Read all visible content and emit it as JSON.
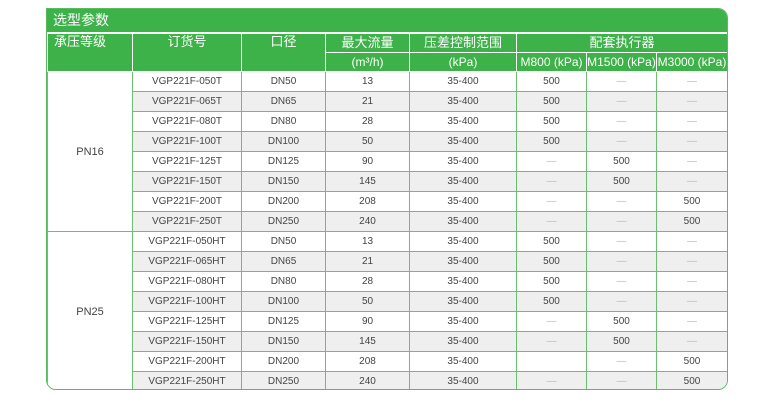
{
  "title": "选型参数",
  "headers": {
    "pressure_class": "承压等级",
    "order_no": "订货号",
    "diameter": "口径",
    "max_flow": "最大流量",
    "max_flow_unit": "(m³/h)",
    "dp_range": "压差控制范围",
    "dp_unit": "(kPa)",
    "actuator": "配套执行器",
    "m800": "M800 (kPa)",
    "m1500": "M1500 (kPa)",
    "m3000": "M3000 (kPa)"
  },
  "groups": [
    {
      "class": "PN16",
      "rows": [
        [
          "VGP221F-050T",
          "DN50",
          "13",
          "35-400",
          "500",
          "—",
          "—"
        ],
        [
          "VGP221F-065T",
          "DN65",
          "21",
          "35-400",
          "500",
          "—",
          "—"
        ],
        [
          "VGP221F-080T",
          "DN80",
          "28",
          "35-400",
          "500",
          "—",
          "—"
        ],
        [
          "VGP221F-100T",
          "DN100",
          "50",
          "35-400",
          "500",
          "—",
          "—"
        ],
        [
          "VGP221F-125T",
          "DN125",
          "90",
          "35-400",
          "—",
          "500",
          "—"
        ],
        [
          "VGP221F-150T",
          "DN150",
          "145",
          "35-400",
          "—",
          "500",
          "—"
        ],
        [
          "VGP221F-200T",
          "DN200",
          "208",
          "35-400",
          "—",
          "—",
          "500"
        ],
        [
          "VGP221F-250T",
          "DN250",
          "240",
          "35-400",
          "—",
          "—",
          "500"
        ]
      ]
    },
    {
      "class": "PN25",
      "rows": [
        [
          "VGP221F-050HT",
          "DN50",
          "13",
          "35-400",
          "500",
          "—",
          "—"
        ],
        [
          "VGP221F-065HT",
          "DN65",
          "21",
          "35-400",
          "500",
          "—",
          "—"
        ],
        [
          "VGP221F-080HT",
          "DN80",
          "28",
          "35-400",
          "500",
          "—",
          "—"
        ],
        [
          "VGP221F-100HT",
          "DN100",
          "50",
          "35-400",
          "500",
          "—",
          "—"
        ],
        [
          "VGP221F-125HT",
          "DN125",
          "90",
          "35-400",
          "—",
          "500",
          "—"
        ],
        [
          "VGP221F-150HT",
          "DN150",
          "145",
          "35-400",
          "—",
          "500",
          "—"
        ],
        [
          "VGP221F-200HT",
          "DN200",
          "208",
          "35-400",
          "",
          "—",
          "500"
        ],
        [
          "VGP221F-250HT",
          "DN250",
          "240",
          "35-400",
          "—",
          "—",
          "500"
        ]
      ]
    }
  ]
}
